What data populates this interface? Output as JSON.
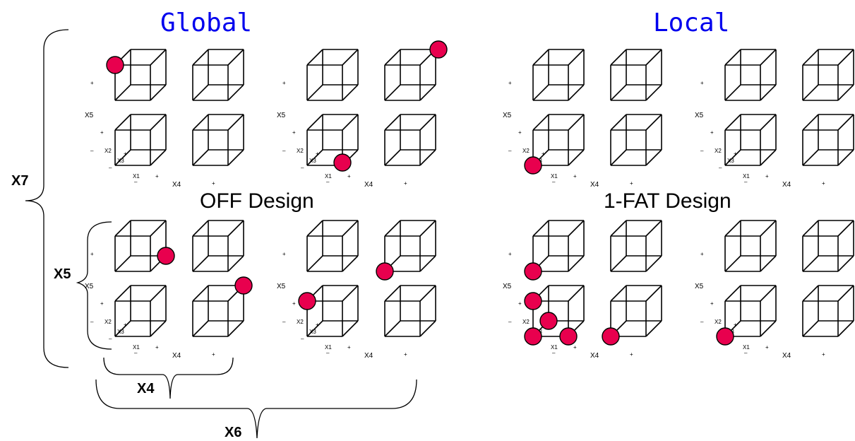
{
  "titles": {
    "global": "Global",
    "local": "Local"
  },
  "designs": {
    "off": "OFF Design",
    "fat": "1-FAT Design"
  },
  "factors": {
    "x7": "X7",
    "x5": "X5",
    "x4": "X4",
    "x6": "X6"
  },
  "axis": {
    "x1": "X1",
    "x2": "X2",
    "x3": "X3",
    "x4": "X4",
    "x5": "X5",
    "plus": "+",
    "minus": "–"
  },
  "colors": {
    "point": "#e8004e",
    "title": "#0000ee"
  }
}
